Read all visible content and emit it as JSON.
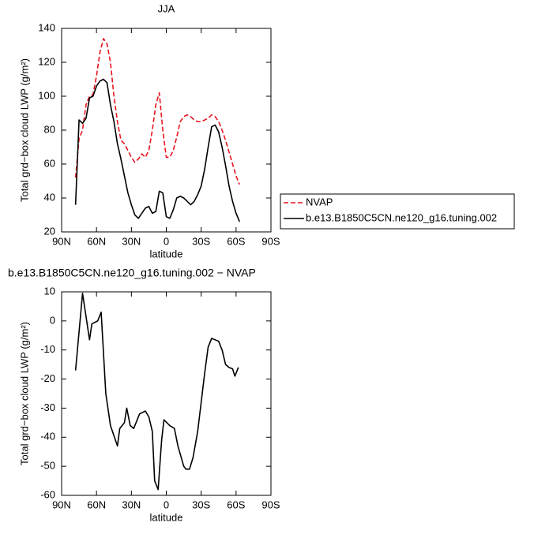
{
  "chart_data": [
    {
      "type": "line",
      "title": "JJA",
      "xlabel": "latitude",
      "ylabel": "Total grd−box cloud LWP (g/m²)",
      "x": [
        78,
        75,
        72,
        69,
        66,
        63,
        60,
        57,
        54,
        51,
        48,
        45,
        42,
        39,
        36,
        33,
        30,
        27,
        24,
        21,
        18,
        15,
        12,
        9,
        6,
        3,
        0,
        -3,
        -6,
        -9,
        -12,
        -15,
        -18,
        -21,
        -24,
        -27,
        -30,
        -33,
        -36,
        -39,
        -42,
        -45,
        -48,
        -51,
        -54,
        -57,
        -60,
        -63
      ],
      "series": [
        {
          "name": "NVAP",
          "color": "#e8141e",
          "linestyle": "dashed",
          "values": [
            52,
            75,
            80,
            95,
            100,
            101,
            112,
            126,
            134,
            131,
            120,
            100,
            85,
            74,
            72,
            68,
            64,
            61,
            63,
            66,
            64,
            68,
            80,
            95,
            102,
            80,
            64,
            64,
            68,
            76,
            85,
            88,
            89,
            88,
            86,
            85,
            85,
            86,
            87,
            89,
            88,
            85,
            80,
            74,
            67,
            60,
            53,
            48
          ]
        },
        {
          "name": "b.e13.B1850C5CN.ne120_g16.tuning.002",
          "color": "#000000",
          "linestyle": "solid",
          "values": [
            36,
            86,
            84,
            87,
            99,
            100,
            106,
            109,
            110,
            108,
            95,
            85,
            72,
            63,
            53,
            43,
            36,
            30,
            28,
            31,
            34,
            35,
            31,
            32,
            44,
            43,
            29,
            28,
            33,
            40,
            41,
            40,
            38,
            36,
            38,
            42,
            47,
            57,
            70,
            82,
            83,
            79,
            70,
            59,
            47,
            38,
            31,
            26
          ]
        }
      ],
      "xlim": [
        90,
        -90
      ],
      "xticks": [
        {
          "value": 90,
          "label": "90N"
        },
        {
          "value": 60,
          "label": "60N"
        },
        {
          "value": 30,
          "label": "30N"
        },
        0,
        {
          "value": -30,
          "label": "30S"
        },
        {
          "value": -60,
          "label": "60S"
        },
        {
          "value": -90,
          "label": "90S"
        }
      ],
      "ylim": [
        20,
        140
      ],
      "yticks": [
        20,
        40,
        60,
        80,
        100,
        120,
        140
      ],
      "legend": "right"
    },
    {
      "type": "line",
      "title": "b.e13.B1850C5CN.ne120_g16.tuning.002 − NVAP",
      "xlabel": "latitude",
      "ylabel": "Total grd−box cloud LWP (g/m²)",
      "x": [
        78,
        72,
        66,
        64,
        59,
        56,
        52,
        48,
        42,
        40,
        36,
        34,
        31,
        28,
        23,
        18,
        15,
        12,
        10,
        7,
        4,
        2,
        -3,
        -7,
        -10,
        -15,
        -17,
        -20,
        -23,
        -27,
        -30,
        -33,
        -36,
        -39,
        -42,
        -45,
        -48,
        -51,
        -54,
        -57,
        -59,
        -62
      ],
      "series": [
        {
          "name": "b.e13.B1850C5CN.ne120_g16.tuning.002 − NVAP",
          "color": "#000000",
          "linestyle": "solid",
          "values": [
            -17,
            9.5,
            -6.5,
            -1,
            0,
            3,
            -25,
            -36,
            -43,
            -37,
            -35,
            -30,
            -36,
            -37,
            -32,
            -31,
            -33,
            -38,
            -55,
            -58,
            -41,
            -34,
            -36,
            -37,
            -43,
            -50,
            -51,
            -51,
            -47,
            -38,
            -28,
            -18,
            -9,
            -6,
            -6.5,
            -7,
            -10,
            -15,
            -16,
            -16.5,
            -19,
            -16
          ]
        }
      ],
      "xlim": [
        90,
        -90
      ],
      "xticks": [
        {
          "value": 90,
          "label": "90N"
        },
        {
          "value": 60,
          "label": "60N"
        },
        {
          "value": 30,
          "label": "30N"
        },
        0,
        {
          "value": -30,
          "label": "30S"
        },
        {
          "value": -60,
          "label": "60S"
        },
        {
          "value": -90,
          "label": "90S"
        }
      ],
      "ylim": [
        -60,
        10
      ],
      "yticks": [
        -60,
        -50,
        -40,
        -30,
        -20,
        -10,
        0,
        10
      ]
    }
  ]
}
